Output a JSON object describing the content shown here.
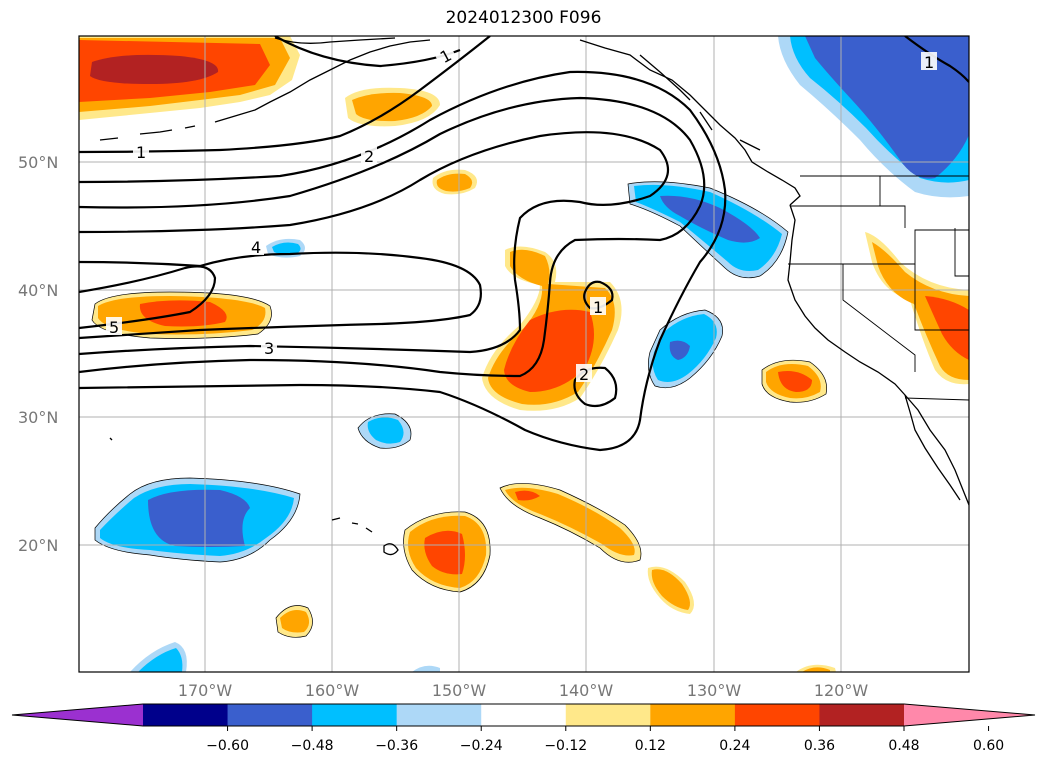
{
  "title": "2024012300 F096",
  "latitude_labels": [
    "50°N",
    "40°N",
    "30°N",
    "20°N"
  ],
  "longitude_labels": [
    "170°W",
    "160°W",
    "150°W",
    "140°W",
    "130°W",
    "120°W"
  ],
  "colorbar": {
    "ticks": [
      "−0.60",
      "−0.48",
      "−0.36",
      "−0.24",
      "−0.12",
      "0.12",
      "0.24",
      "0.36",
      "0.48",
      "0.60"
    ],
    "colors": [
      "#9b30d0",
      "#00008b",
      "#3a5fcd",
      "#00bfff",
      "#add8f7",
      "#ffffff",
      "#ffe88a",
      "#ffa500",
      "#ff4500",
      "#b22222",
      "#ff88aa"
    ]
  },
  "contour_labels": [
    "1",
    "1",
    "1",
    "1",
    "2",
    "2",
    "3",
    "4",
    "5"
  ],
  "colors": {
    "land_outline": "#000000",
    "grid": "#b0b0b0",
    "contour": "#000000"
  }
}
